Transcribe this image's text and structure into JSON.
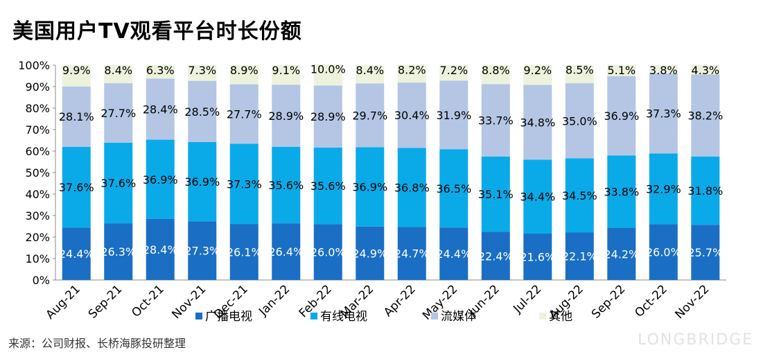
{
  "title": "美国用户TV观看平台时长份额",
  "source": "来源：公司财报、长桥海豚投研整理",
  "watermark": "LONGBRIDGE",
  "chart_data": {
    "type": "bar",
    "stacked": true,
    "categories": [
      "Aug-21",
      "Sep-21",
      "Oct-21",
      "Nov-21",
      "Dec-21",
      "Jan-22",
      "Feb-22",
      "Mar-22",
      "Apr-22",
      "May-22",
      "Jun-22",
      "Jul-22",
      "Aug-22",
      "Sep-22",
      "Oct-22",
      "Nov-22"
    ],
    "ylim": [
      0,
      100
    ],
    "yticks": [
      "0%",
      "10%",
      "20%",
      "30%",
      "40%",
      "50%",
      "60%",
      "70%",
      "80%",
      "90%",
      "100%"
    ],
    "legend_position": "bottom",
    "series": [
      {
        "name": "广播电视",
        "color": "#1a6fc4",
        "labels": [
          "24.4%",
          "26.3%",
          "28.4%",
          "27.3%",
          "26.1%",
          "26.4%",
          "26.0%",
          "24.9%",
          "24.7%",
          "24.4%",
          "22.4%",
          "21.6%",
          "22.1%",
          "24.2%",
          "26.0%",
          "25.7%"
        ],
        "values": [
          24.4,
          26.3,
          28.4,
          27.3,
          26.1,
          26.4,
          26.0,
          24.9,
          24.7,
          24.4,
          22.4,
          21.6,
          22.1,
          24.2,
          26.0,
          25.7
        ]
      },
      {
        "name": "有线电视",
        "color": "#0aaae8",
        "labels": [
          "37.6%",
          "37.6%",
          "36.9%",
          "36.9%",
          "37.3%",
          "35.6%",
          "35.6%",
          "36.9%",
          "36.8%",
          "36.5%",
          "35.1%",
          "34.4%",
          "34.5%",
          "33.8%",
          "32.9%",
          "31.8%"
        ],
        "values": [
          37.6,
          37.6,
          36.9,
          36.9,
          37.3,
          35.6,
          35.6,
          36.9,
          36.8,
          36.5,
          35.1,
          34.4,
          34.5,
          33.8,
          32.9,
          31.8
        ]
      },
      {
        "name": "流媒体",
        "color": "#b4c6e4",
        "labels": [
          "28.1%",
          "27.7%",
          "28.4%",
          "28.5%",
          "27.7%",
          "28.9%",
          "28.9%",
          "29.7%",
          "30.4%",
          "31.9%",
          "33.7%",
          "34.8%",
          "35.0%",
          "36.9%",
          "37.3%",
          "38.2%"
        ],
        "values": [
          28.1,
          27.7,
          28.4,
          28.5,
          27.7,
          28.9,
          28.9,
          29.7,
          30.4,
          31.9,
          33.7,
          34.8,
          35.0,
          36.9,
          37.3,
          38.2
        ]
      },
      {
        "name": "其他",
        "color": "#ecf2dc",
        "labels": [
          "9.9%",
          "8.4%",
          "6.3%",
          "7.3%",
          "8.9%",
          "9.1%",
          "10.0%",
          "8.4%",
          "8.2%",
          "7.2%",
          "8.8%",
          "9.2%",
          "8.5%",
          "5.1%",
          "3.8%",
          "4.3%"
        ],
        "values": [
          9.9,
          8.4,
          6.3,
          7.3,
          8.9,
          9.1,
          10.0,
          8.4,
          8.2,
          7.2,
          8.8,
          9.2,
          8.5,
          5.1,
          3.8,
          4.3
        ]
      }
    ]
  }
}
